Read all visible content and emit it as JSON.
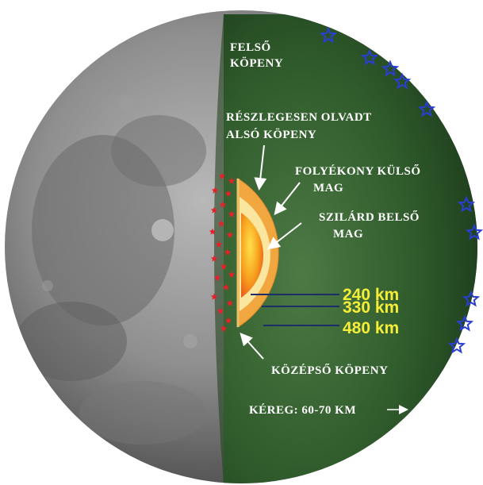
{
  "labels": {
    "upper_mantle_line1": "FELSŐ",
    "upper_mantle_line2": "KÖPENY",
    "partial_melt_line1": "RÉSZLEGESEN OLVADT",
    "partial_melt_line2": "ALSÓ KÖPENY",
    "outer_core_line1": "FOLYÉKONY KÜLSŐ",
    "outer_core_line2": "MAG",
    "inner_core_line1": "SZILÁRD BELSŐ",
    "inner_core_line2": "MAG",
    "middle_mantle": "KÖZÉPSŐ KÖPENY",
    "crust": "KÉREG: 60-70 KM"
  },
  "distances": [
    "240 km",
    "330 km",
    "480 km"
  ],
  "colors": {
    "mantle_green": "#2f5a2b",
    "moon_gray": "#8a8a8a",
    "label_text": "#ffffff",
    "distance_text": "#f5ee38",
    "star_marker": "#2a3fd0",
    "red_marker": "#e8202a"
  },
  "icons": {
    "deep_quake_marker": "red-star-icon",
    "shallow_quake_marker": "blue-star-icon",
    "pointer": "arrow-icon"
  }
}
